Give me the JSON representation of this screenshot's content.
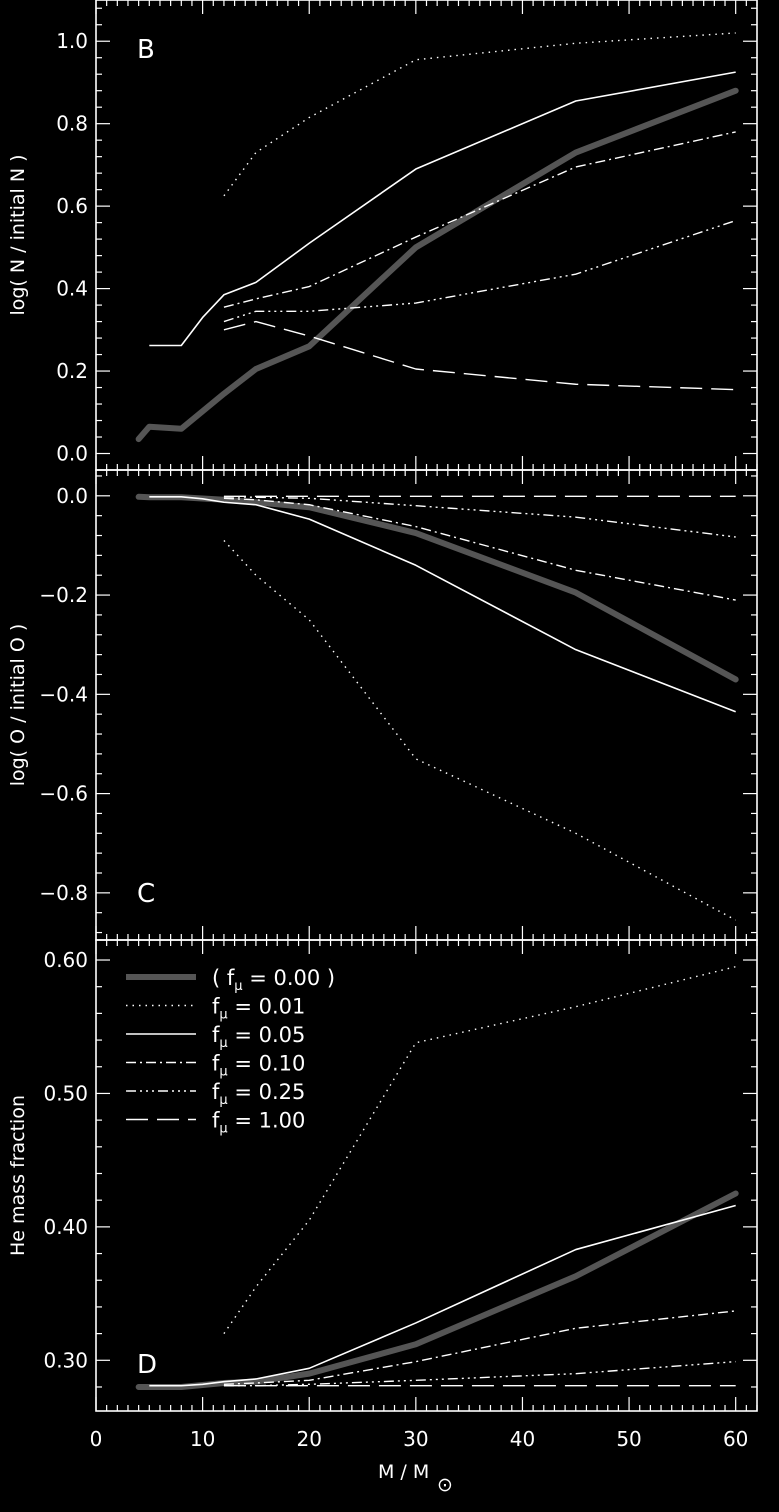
{
  "colors": {
    "background": "#000000",
    "axes": "#ffffff",
    "thick_series": "#555555",
    "thin_series": "#ffffff"
  },
  "chart_data": [
    {
      "type": "line",
      "panel_label": "B",
      "ylabel": "log( N / initial N )",
      "xlim": [
        0,
        62
      ],
      "ylim": [
        -0.04,
        1.1
      ],
      "yticks": [
        0.0,
        0.2,
        0.4,
        0.6,
        0.8,
        1.0
      ],
      "ytick_labels": [
        "0.0",
        "0.2",
        "0.4",
        "0.6",
        "0.8",
        "1.0"
      ],
      "series": [
        {
          "name": "( f_μ = 0.00 )",
          "x": [
            4,
            5,
            8,
            12,
            15,
            20,
            30,
            45,
            60
          ],
          "y": [
            0.035,
            0.065,
            0.06,
            0.145,
            0.205,
            0.26,
            0.5,
            0.73,
            0.88
          ]
        },
        {
          "name": "f_μ = 0.01",
          "x": [
            12,
            15,
            20,
            30,
            45,
            60
          ],
          "y": [
            0.625,
            0.73,
            0.815,
            0.955,
            0.995,
            1.02
          ]
        },
        {
          "name": "f_μ = 0.05",
          "x": [
            5,
            8,
            10,
            12,
            15,
            20,
            30,
            45,
            60
          ],
          "y": [
            0.262,
            0.262,
            0.33,
            0.385,
            0.415,
            0.51,
            0.69,
            0.855,
            0.925
          ]
        },
        {
          "name": "f_μ = 0.10",
          "x": [
            12,
            15,
            20,
            30,
            45,
            60
          ],
          "y": [
            0.355,
            0.375,
            0.405,
            0.525,
            0.695,
            0.78
          ]
        },
        {
          "name": "f_μ = 0.25",
          "x": [
            12,
            15,
            20,
            30,
            45,
            60
          ],
          "y": [
            0.32,
            0.345,
            0.345,
            0.365,
            0.435,
            0.565
          ]
        },
        {
          "name": "f_μ = 1.00",
          "x": [
            12,
            15,
            20,
            30,
            45,
            60
          ],
          "y": [
            0.3,
            0.32,
            0.285,
            0.205,
            0.168,
            0.155
          ]
        }
      ]
    },
    {
      "type": "line",
      "panel_label": "C",
      "ylabel": "log( O / initial O )",
      "xlim": [
        0,
        62
      ],
      "ylim": [
        -0.895,
        0.052
      ],
      "yticks": [
        0.0,
        -0.2,
        -0.4,
        -0.6,
        -0.8
      ],
      "ytick_labels": [
        "0.0",
        "−0.2",
        "−0.4",
        "−0.6",
        "−0.8"
      ],
      "series": [
        {
          "name": "( f_μ = 0.00 )",
          "x": [
            4,
            5,
            8,
            12,
            15,
            20,
            30,
            45,
            60
          ],
          "y": [
            -0.002,
            -0.003,
            -0.003,
            -0.008,
            -0.013,
            -0.023,
            -0.075,
            -0.195,
            -0.37
          ]
        },
        {
          "name": "f_μ = 0.01",
          "x": [
            12,
            15,
            20,
            30,
            45,
            60
          ],
          "y": [
            -0.09,
            -0.16,
            -0.25,
            -0.53,
            -0.68,
            -0.855
          ]
        },
        {
          "name": "f_μ = 0.05",
          "x": [
            5,
            8,
            10,
            12,
            15,
            20,
            30,
            45,
            60
          ],
          "y": [
            -0.002,
            -0.002,
            -0.006,
            -0.013,
            -0.018,
            -0.047,
            -0.14,
            -0.31,
            -0.435
          ]
        },
        {
          "name": "f_μ = 0.10",
          "x": [
            12,
            15,
            20,
            30,
            45,
            60
          ],
          "y": [
            -0.005,
            -0.008,
            -0.018,
            -0.062,
            -0.15,
            -0.21
          ]
        },
        {
          "name": "f_μ = 0.25",
          "x": [
            12,
            15,
            20,
            30,
            45,
            60
          ],
          "y": [
            -0.002,
            -0.003,
            -0.005,
            -0.02,
            -0.043,
            -0.083
          ]
        },
        {
          "name": "f_μ = 1.00",
          "x": [
            12,
            15,
            20,
            30,
            45,
            60
          ],
          "y": [
            -0.001,
            -0.001,
            -0.001,
            -0.001,
            -0.001,
            -0.001
          ]
        }
      ]
    },
    {
      "type": "line",
      "panel_label": "D",
      "ylabel": "He mass fraction",
      "xlabel": "M / M",
      "xlabel_symbol": "⊙",
      "xlim": [
        0,
        62
      ],
      "ylim": [
        0.262,
        0.615
      ],
      "xticks": [
        0,
        10,
        20,
        30,
        40,
        50,
        60
      ],
      "xtick_labels": [
        "0",
        "10",
        "20",
        "30",
        "40",
        "50",
        "60"
      ],
      "yticks": [
        0.3,
        0.4,
        0.5,
        0.6
      ],
      "ytick_labels": [
        "0.30",
        "0.40",
        "0.50",
        "0.60"
      ],
      "legend_position": "top-left",
      "series": [
        {
          "name": "( f_μ = 0.00 )",
          "x": [
            4,
            5,
            8,
            12,
            15,
            20,
            30,
            45,
            60
          ],
          "y": [
            0.28,
            0.28,
            0.28,
            0.283,
            0.284,
            0.29,
            0.312,
            0.363,
            0.425
          ]
        },
        {
          "name": "f_μ = 0.01",
          "x": [
            12,
            15,
            20,
            30,
            45,
            60
          ],
          "y": [
            0.32,
            0.355,
            0.405,
            0.538,
            0.565,
            0.595
          ]
        },
        {
          "name": "f_μ = 0.05",
          "x": [
            5,
            8,
            10,
            12,
            15,
            20,
            30,
            45,
            60
          ],
          "y": [
            0.281,
            0.281,
            0.282,
            0.284,
            0.286,
            0.294,
            0.328,
            0.383,
            0.416
          ]
        },
        {
          "name": "f_μ = 0.10",
          "x": [
            12,
            15,
            20,
            30,
            45,
            60
          ],
          "y": [
            0.282,
            0.283,
            0.285,
            0.299,
            0.324,
            0.337
          ]
        },
        {
          "name": "f_μ = 0.25",
          "x": [
            12,
            15,
            20,
            30,
            45,
            60
          ],
          "y": [
            0.281,
            0.281,
            0.282,
            0.285,
            0.29,
            0.299
          ]
        },
        {
          "name": "f_μ = 1.00",
          "x": [
            12,
            15,
            20,
            30,
            45,
            60
          ],
          "y": [
            0.281,
            0.281,
            0.281,
            0.281,
            0.281,
            0.281
          ]
        }
      ],
      "legend": [
        {
          "prefix": "( f",
          "subscript": "μ",
          "suffix": " = 0.00 )"
        },
        {
          "prefix": "f",
          "subscript": "μ",
          "suffix": " = 0.01"
        },
        {
          "prefix": "f",
          "subscript": "μ",
          "suffix": " = 0.05"
        },
        {
          "prefix": "f",
          "subscript": "μ",
          "suffix": " = 0.10"
        },
        {
          "prefix": "f",
          "subscript": "μ",
          "suffix": " = 0.25"
        },
        {
          "prefix": "f",
          "subscript": "μ",
          "suffix": " = 1.00"
        }
      ]
    }
  ]
}
